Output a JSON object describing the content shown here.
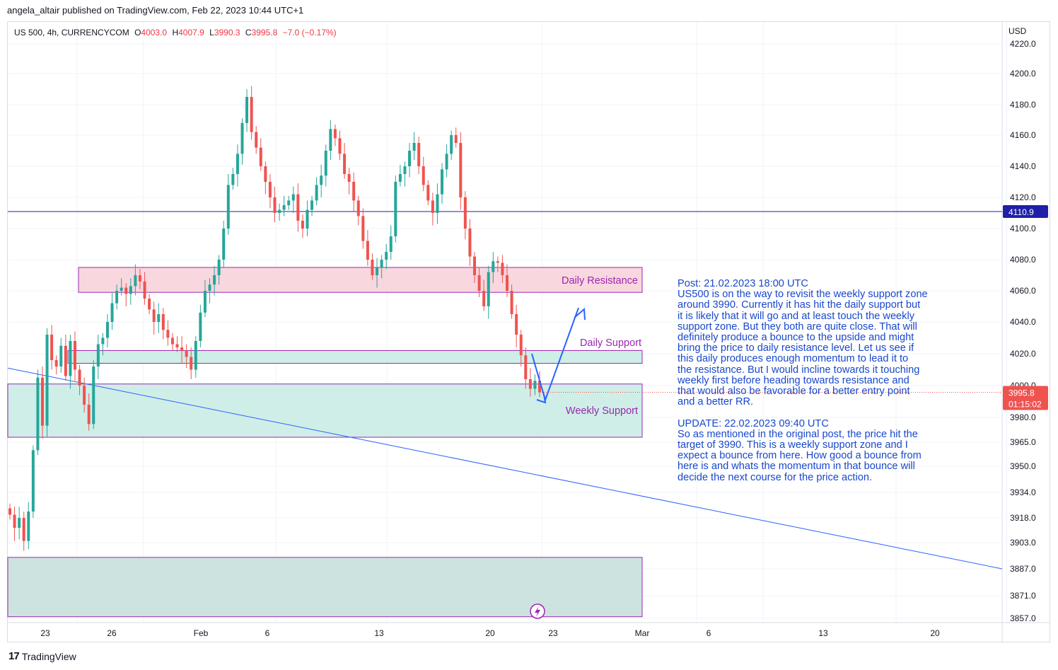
{
  "header": {
    "published": "angela_altair published on TradingView.com, Feb 22, 2023 10:44 UTC+1"
  },
  "legend": {
    "symbol": "US 500, 4h, CURRENCYCOM",
    "o_label": "O",
    "o_value": "4003.0",
    "h_label": "H",
    "h_value": "4007.9",
    "l_label": "L",
    "l_value": "3990.3",
    "c_label": "C",
    "c_value": "3995.8",
    "change": "−7.0 (−0.17%)"
  },
  "axis": {
    "currency": "USD",
    "price_ticks": [
      "4220.0",
      "4200.0",
      "4180.0",
      "4160.0",
      "4140.0",
      "4120.0",
      "4100.0",
      "4080.0",
      "4060.0",
      "4040.0",
      "4020.0",
      "4000.0",
      "3980.0",
      "3965.0",
      "3950.0",
      "3934.0",
      "3918.0",
      "3903.0",
      "3887.0",
      "3871.0",
      "3857.0"
    ],
    "time_ticks": [
      "23",
      "26",
      "Feb",
      "6",
      "13",
      "20",
      "23",
      "Mar",
      "6",
      "13",
      "20"
    ],
    "price_label": "4110.9",
    "current_price": "3995.8",
    "countdown": "01:15:02"
  },
  "annotations": {
    "daily_resistance": "Daily Resistance",
    "daily_support": "Daily Support",
    "weekly_support": "Weekly Support",
    "note": "Post: 21.02.2023 18:00 UTC\nUS500 is on the way to revisit the weekly support zone\naround 3990. Currently it has hit the daily support but\nit is likely that it will go and at least touch the weekly\nsupport zone. But they both are quite close. That will\ndefinitely produce a bounce to the upside and might\nbring the price to daily resistance level. Let us see if\nthis daily produces enough momentum to lead it to\nthe resistance. But I would incline towards it touching\nweekly first before heading towards resistance and\nthat would also be favorable for a better entry point\nand a better RR.\n\nUPDATE: 22.02.2023 09:40 UTC\nSo as mentioned in the original post, the price hit the\ntarget of 3990. This is a weekly support zone and I\nexpect a bounce from here. How good a bounce from\nhere is and whats the momentum in that bounce will\ndecide the next course for the price action."
  },
  "footer": {
    "brand": "TradingView",
    "logo": "17"
  },
  "colors": {
    "up": "#26a69a",
    "down": "#ef5350",
    "resistance_fill": "#f8d7de",
    "zone_border": "#9c27b0",
    "support_fill": "#cfeee8",
    "deep_support_fill": "#cde3df",
    "hline": "#1f1fa8",
    "trend": "#2962ff",
    "label": "#9c27b0",
    "note": "#1848cc"
  },
  "chart_data": {
    "type": "candlestick",
    "symbol": "US 500",
    "interval": "4h",
    "ylim": [
      3857,
      4225
    ],
    "horizontal_line": 4110.9,
    "zones": [
      {
        "label": "Daily Resistance",
        "top": 4075,
        "bottom": 4059
      },
      {
        "label": "Daily Support",
        "top": 4022,
        "bottom": 4014
      },
      {
        "label": "Weekly Support",
        "top": 4001,
        "bottom": 3968
      },
      {
        "label": "",
        "top": 3894,
        "bottom": 3858
      }
    ],
    "trendline": {
      "start": [
        "Jan 20",
        4011
      ],
      "end": [
        "Mar 25",
        3887
      ]
    },
    "projection": [
      [
        "Feb 22",
        4020
      ],
      [
        "Feb 22",
        3991
      ],
      [
        "Feb 24",
        4049
      ]
    ],
    "closes_approx": [
      3920,
      3912,
      3918,
      3904,
      3922,
      3960,
      4005,
      3975,
      4032,
      4016,
      4012,
      4025,
      4006,
      4028,
      4010,
      4000,
      3988,
      3976,
      4012,
      4026,
      4030,
      4040,
      4052,
      4060,
      4062,
      4058,
      4063,
      4070,
      4066,
      4055,
      4048,
      4040,
      4045,
      4035,
      4030,
      4026,
      4024,
      4022,
      4018,
      4010,
      4028,
      4046,
      4060,
      4064,
      4070,
      4080,
      4100,
      4128,
      4135,
      4148,
      4168,
      4185,
      4162,
      4152,
      4140,
      4130,
      4120,
      4110,
      4112,
      4115,
      4118,
      4122,
      4105,
      4100,
      4112,
      4118,
      4128,
      4134,
      4150,
      4164,
      4158,
      4148,
      4135,
      4130,
      4118,
      4108,
      4092,
      4080,
      4070,
      4075,
      4080,
      4085,
      4095,
      4130,
      4135,
      4140,
      4150,
      4155,
      4140,
      4128,
      4118,
      4110,
      4122,
      4138,
      4148,
      4160,
      4155,
      4120,
      4100,
      4082,
      4070,
      4060,
      4050,
      4072,
      4079,
      4078,
      4070,
      4060,
      4045,
      4032,
      4019,
      4004,
      3998,
      4003,
      3995.8
    ]
  }
}
